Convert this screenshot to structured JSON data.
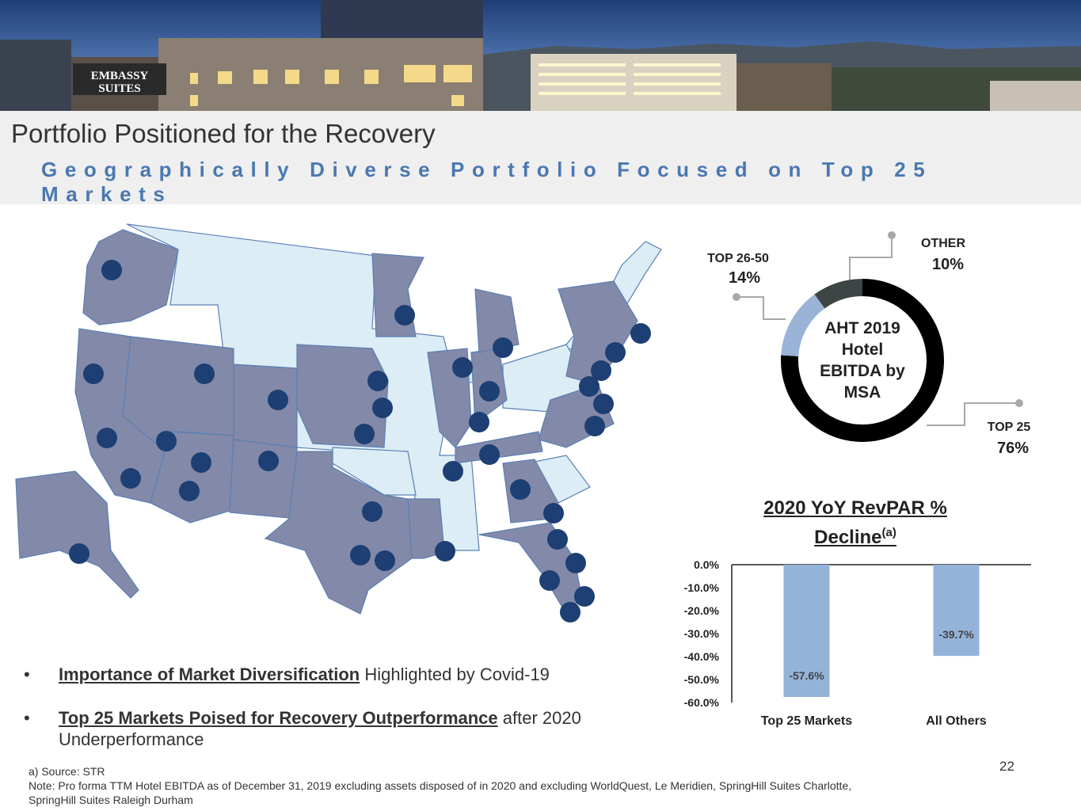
{
  "banner": {
    "sign_line1": "EMBASSY",
    "sign_line2": "SUITES"
  },
  "title": "Portfolio Positioned for the Recovery",
  "subtitle": "Geographically Diverse Portfolio Focused on Top 25 Markets",
  "donut": {
    "center_label": [
      "AHT 2019",
      "Hotel",
      "EBITDA by",
      "MSA"
    ],
    "slices": [
      {
        "name": "TOP 25",
        "value": 76,
        "label": "76%",
        "color": "#000000"
      },
      {
        "name": "TOP 26-50",
        "value": 14,
        "label": "14%",
        "color": "#9ab4d8"
      },
      {
        "name": "OTHER",
        "value": 10,
        "label": "10%",
        "color": "#3d4545"
      }
    ]
  },
  "chart_data": {
    "type": "bar",
    "title": "2020 YoY RevPAR % Decline",
    "title_sup": "(a)",
    "categories": [
      "Top 25 Markets",
      "All Others"
    ],
    "values": [
      -57.6,
      -39.7
    ],
    "value_labels": [
      "-57.6%",
      "-39.7%"
    ],
    "ylim": [
      -60,
      0
    ],
    "yticks": [
      "0.0%",
      "-10.0%",
      "-20.0%",
      "-30.0%",
      "-40.0%",
      "-50.0%",
      "-60.0%"
    ],
    "bar_color": "#94b3d9",
    "grid": false
  },
  "bullets": [
    {
      "bold": "Importance of Market Diversification",
      "rest": " Highlighted by Covid-19"
    },
    {
      "bold": "Top 25 Markets Poised for Recovery Outperformance",
      "rest": " after 2020 Underperformance"
    }
  ],
  "footnote_line1": "a) Source: STR",
  "footnote_line2": "Note: Pro forma TTM Hotel EBITDA as of December 31, 2019 excluding assets disposed of in 2020 and excluding WorldQuest, Le Meridien, SpringHill Suites Charlotte, SpringHill Suites Raleigh Durham",
  "page_number": "22",
  "map_colors": {
    "portfolio_state": "#8389a8",
    "other_state": "#dcedf5",
    "marker": "#1d3f73"
  }
}
